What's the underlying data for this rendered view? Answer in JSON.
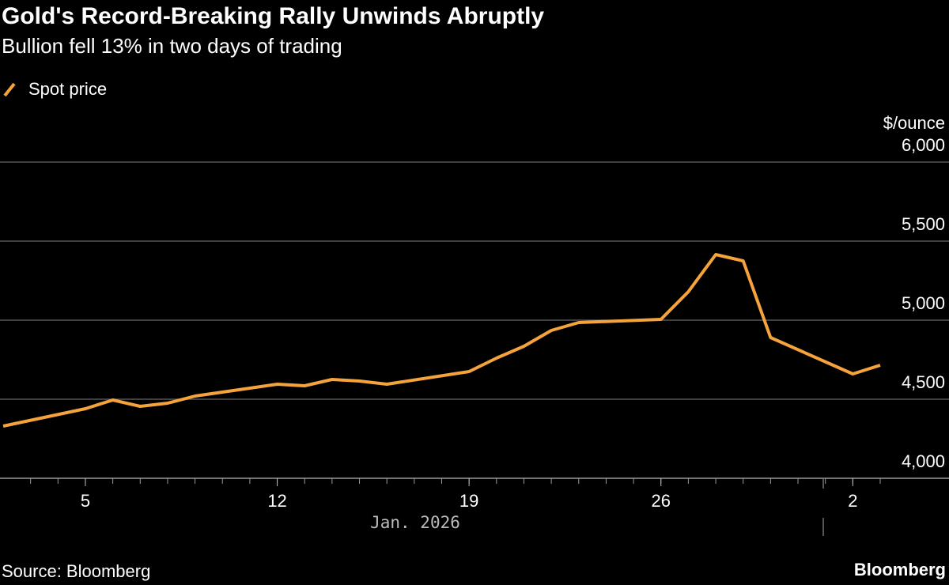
{
  "chart_data": {
    "type": "line",
    "title": "Gold's Record-Breaking Rally Unwinds Abruptly",
    "subtitle": "Bullion fell 13% in two days of trading",
    "y_label": "$/ounce",
    "x_group_label": "Jan. 2026",
    "source": "Source: Bloomberg",
    "brand": "Bloomberg",
    "x": [
      "2026-01-02",
      "2026-01-05",
      "2026-01-06",
      "2026-01-07",
      "2026-01-08",
      "2026-01-09",
      "2026-01-12",
      "2026-01-13",
      "2026-01-14",
      "2026-01-15",
      "2026-01-16",
      "2026-01-19",
      "2026-01-20",
      "2026-01-21",
      "2026-01-22",
      "2026-01-23",
      "2026-01-26",
      "2026-01-27",
      "2026-01-28",
      "2026-01-29",
      "2026-01-30",
      "2026-02-02",
      "2026-02-03"
    ],
    "series": [
      {
        "name": "Spot price",
        "color": "#f5a33b",
        "values": [
          4330,
          4440,
          4495,
          4455,
          4475,
          4520,
          4595,
          4585,
          4625,
          4615,
          4595,
          4675,
          4760,
          4835,
          4935,
          4985,
          5005,
          5180,
          5415,
          5375,
          4890,
          4660,
          4715
        ]
      }
    ],
    "xlim": [
      "2026-01-02",
      "2026-02-03"
    ],
    "xticks": [
      {
        "value": "2026-01-05",
        "label": "5"
      },
      {
        "value": "2026-01-12",
        "label": "12"
      },
      {
        "value": "2026-01-19",
        "label": "19"
      },
      {
        "value": "2026-01-26",
        "label": "26"
      },
      {
        "value": "2026-02-02",
        "label": "2"
      }
    ],
    "ylim": [
      4000,
      6000
    ],
    "yticks": [
      {
        "value": 4000,
        "label": "4,000"
      },
      {
        "value": 4500,
        "label": "4,500"
      },
      {
        "value": 5000,
        "label": "5,000"
      },
      {
        "value": 5500,
        "label": "5,500"
      },
      {
        "value": 6000,
        "label": "6,000"
      }
    ],
    "grid": true
  }
}
